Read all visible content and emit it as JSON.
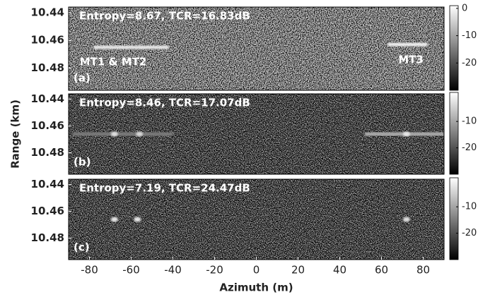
{
  "chart_data": [
    {
      "type": "heatmap",
      "title": "Entropy=8.67, TCR=16.83dB",
      "panel_label": "(a)",
      "annotations": [
        "MT1 & MT2",
        "MT3"
      ],
      "ylabel": "Range (km)",
      "xlim": [
        -90,
        90
      ],
      "ylim": [
        10.496,
        10.436
      ],
      "yticks": [
        10.44,
        10.46,
        10.48
      ],
      "clim": [
        -30,
        1
      ],
      "cticks": [
        0,
        -10,
        -20
      ],
      "streaks": [
        {
          "x0": -78,
          "x1": -42,
          "y": 10.465,
          "level": -2
        },
        {
          "x0": 63,
          "x1": 82,
          "y": 10.463,
          "level": -1
        }
      ],
      "spots": []
    },
    {
      "type": "heatmap",
      "title": "Entropy=8.46, TCR=17.07dB",
      "panel_label": "(b)",
      "xlim": [
        -90,
        90
      ],
      "ylim": [
        10.496,
        10.436
      ],
      "yticks": [
        10.44,
        10.46,
        10.48
      ],
      "clim": [
        -30,
        1
      ],
      "cticks": [
        -10,
        -20
      ],
      "streaks": [
        {
          "x0": -88,
          "x1": -40,
          "y": 10.466,
          "level": -15
        },
        {
          "x0": 52,
          "x1": 90,
          "y": 10.466,
          "level": -9
        }
      ],
      "spots": [
        {
          "x": -68,
          "y": 10.466,
          "level": -3
        },
        {
          "x": -56,
          "y": 10.466,
          "level": -4
        },
        {
          "x": 72,
          "y": 10.466,
          "level": -2
        }
      ]
    },
    {
      "type": "heatmap",
      "title": "Entropy=7.19, TCR=24.47dB",
      "panel_label": "(c)",
      "xlabel": "Azimuth (m)",
      "xlim": [
        -90,
        90
      ],
      "xticks": [
        -80,
        -60,
        -40,
        -20,
        0,
        20,
        40,
        60,
        80
      ],
      "ylim": [
        10.496,
        10.436
      ],
      "yticks": [
        10.44,
        10.46,
        10.48
      ],
      "clim": [
        -30,
        1
      ],
      "cticks": [
        -10,
        -20
      ],
      "streaks": [],
      "spots": [
        {
          "x": -68,
          "y": 10.466,
          "level": -2
        },
        {
          "x": -57,
          "y": 10.466,
          "level": -2
        },
        {
          "x": 72,
          "y": 10.466,
          "level": -3
        }
      ]
    }
  ]
}
